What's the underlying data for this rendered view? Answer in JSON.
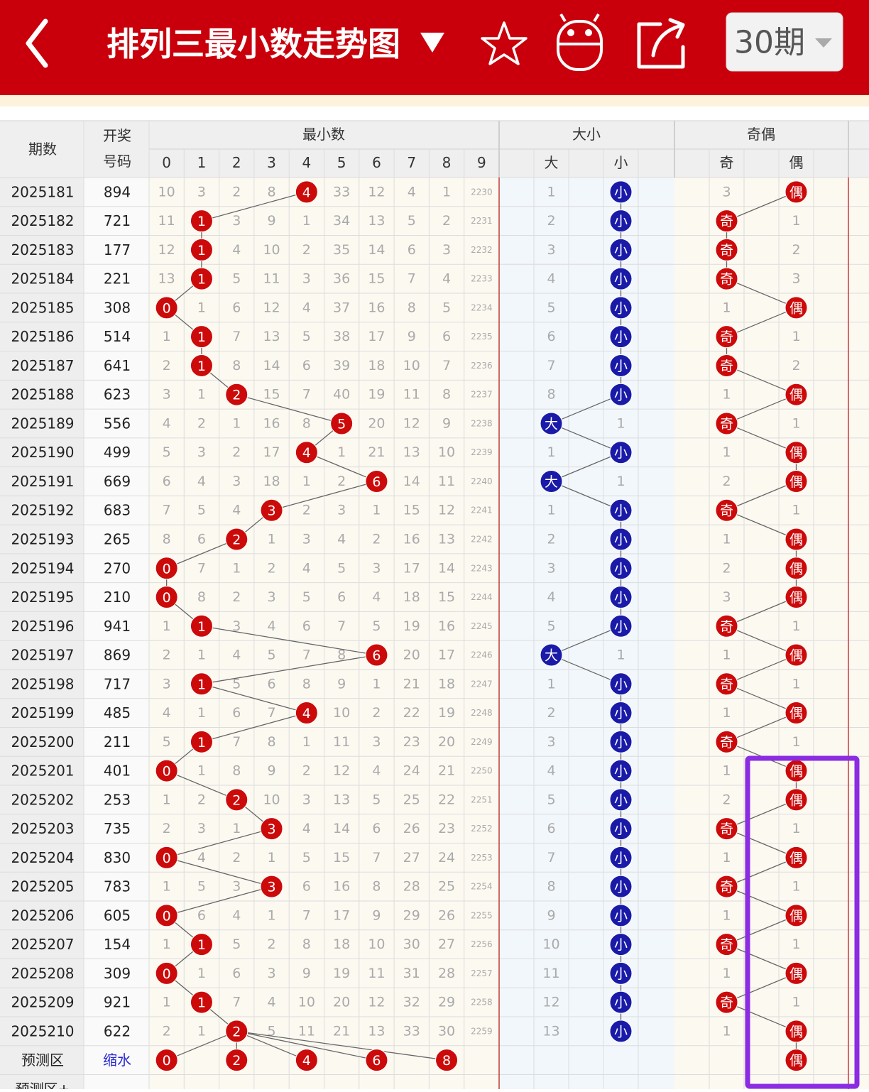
{
  "header": {
    "title": "排列三最小数走势图",
    "period_select": "30期"
  },
  "table": {
    "period_header": "期数",
    "number_header": [
      "开奖",
      "号码"
    ],
    "groups": [
      "最小数",
      "大小",
      "奇偶"
    ],
    "digits": [
      0,
      1,
      2,
      3,
      4,
      5,
      6,
      7,
      8,
      9
    ],
    "size_headers": [
      "大",
      "小"
    ],
    "parity_headers": [
      "奇",
      "偶"
    ],
    "rows": [
      {
        "period": "2025181",
        "number": "894",
        "min": [
          10,
          3,
          2,
          8,
          null,
          33,
          12,
          4,
          1,
          2230
        ],
        "hit": 4,
        "size": "小",
        "size_miss": 1,
        "parity": "偶",
        "parity_miss": 3
      },
      {
        "period": "2025182",
        "number": "721",
        "min": [
          11,
          null,
          3,
          9,
          1,
          34,
          13,
          5,
          2,
          2231
        ],
        "hit": 1,
        "size": "小",
        "size_miss": 2,
        "parity": "奇",
        "parity_miss": 1
      },
      {
        "period": "2025183",
        "number": "177",
        "min": [
          12,
          null,
          4,
          10,
          2,
          35,
          14,
          6,
          3,
          2232
        ],
        "hit": 1,
        "size": "小",
        "size_miss": 3,
        "parity": "奇",
        "parity_miss": 2
      },
      {
        "period": "2025184",
        "number": "221",
        "min": [
          13,
          null,
          5,
          11,
          3,
          36,
          15,
          7,
          4,
          2233
        ],
        "hit": 1,
        "size": "小",
        "size_miss": 4,
        "parity": "奇",
        "parity_miss": 3
      },
      {
        "period": "2025185",
        "number": "308",
        "min": [
          null,
          1,
          6,
          12,
          4,
          37,
          16,
          8,
          5,
          2234
        ],
        "hit": 0,
        "size": "小",
        "size_miss": 5,
        "parity": "偶",
        "parity_miss": 1
      },
      {
        "period": "2025186",
        "number": "514",
        "min": [
          1,
          null,
          7,
          13,
          5,
          38,
          17,
          9,
          6,
          2235
        ],
        "hit": 1,
        "size": "小",
        "size_miss": 6,
        "parity": "奇",
        "parity_miss": 1
      },
      {
        "period": "2025187",
        "number": "641",
        "min": [
          2,
          null,
          8,
          14,
          6,
          39,
          18,
          10,
          7,
          2236
        ],
        "hit": 1,
        "size": "小",
        "size_miss": 7,
        "parity": "奇",
        "parity_miss": 2
      },
      {
        "period": "2025188",
        "number": "623",
        "min": [
          3,
          1,
          null,
          15,
          7,
          40,
          19,
          11,
          8,
          2237
        ],
        "hit": 2,
        "size": "小",
        "size_miss": 8,
        "parity": "偶",
        "parity_miss": 1
      },
      {
        "period": "2025189",
        "number": "556",
        "min": [
          4,
          2,
          1,
          16,
          8,
          null,
          20,
          12,
          9,
          2238
        ],
        "hit": 5,
        "size": "大",
        "size_miss": 1,
        "parity": "奇",
        "parity_miss": 1
      },
      {
        "period": "2025190",
        "number": "499",
        "min": [
          5,
          3,
          2,
          17,
          null,
          1,
          21,
          13,
          10,
          2239
        ],
        "hit": 4,
        "size": "小",
        "size_miss": 1,
        "parity": "偶",
        "parity_miss": 1
      },
      {
        "period": "2025191",
        "number": "669",
        "min": [
          6,
          4,
          3,
          18,
          1,
          2,
          null,
          14,
          11,
          2240
        ],
        "hit": 6,
        "size": "大",
        "size_miss": 1,
        "parity": "偶",
        "parity_miss": 2
      },
      {
        "period": "2025192",
        "number": "683",
        "min": [
          7,
          5,
          4,
          null,
          2,
          3,
          1,
          15,
          12,
          2241
        ],
        "hit": 3,
        "size": "小",
        "size_miss": 1,
        "parity": "奇",
        "parity_miss": 1
      },
      {
        "period": "2025193",
        "number": "265",
        "min": [
          8,
          6,
          null,
          1,
          3,
          4,
          2,
          16,
          13,
          2242
        ],
        "hit": 2,
        "size": "小",
        "size_miss": 2,
        "parity": "偶",
        "parity_miss": 1
      },
      {
        "period": "2025194",
        "number": "270",
        "min": [
          null,
          7,
          1,
          2,
          4,
          5,
          3,
          17,
          14,
          2243
        ],
        "hit": 0,
        "size": "小",
        "size_miss": 3,
        "parity": "偶",
        "parity_miss": 2
      },
      {
        "period": "2025195",
        "number": "210",
        "min": [
          null,
          8,
          2,
          3,
          5,
          6,
          4,
          18,
          15,
          2244
        ],
        "hit": 0,
        "size": "小",
        "size_miss": 4,
        "parity": "偶",
        "parity_miss": 3
      },
      {
        "period": "2025196",
        "number": "941",
        "min": [
          1,
          null,
          3,
          4,
          6,
          7,
          5,
          19,
          16,
          2245
        ],
        "hit": 1,
        "size": "小",
        "size_miss": 5,
        "parity": "奇",
        "parity_miss": 1
      },
      {
        "period": "2025197",
        "number": "869",
        "min": [
          2,
          1,
          4,
          5,
          7,
          8,
          null,
          20,
          17,
          2246
        ],
        "hit": 6,
        "size": "大",
        "size_miss": 1,
        "parity": "偶",
        "parity_miss": 1
      },
      {
        "period": "2025198",
        "number": "717",
        "min": [
          3,
          null,
          5,
          6,
          8,
          9,
          1,
          21,
          18,
          2247
        ],
        "hit": 1,
        "size": "小",
        "size_miss": 1,
        "parity": "奇",
        "parity_miss": 1
      },
      {
        "period": "2025199",
        "number": "485",
        "min": [
          4,
          1,
          6,
          7,
          null,
          10,
          2,
          22,
          19,
          2248
        ],
        "hit": 4,
        "size": "小",
        "size_miss": 2,
        "parity": "偶",
        "parity_miss": 1
      },
      {
        "period": "2025200",
        "number": "211",
        "min": [
          5,
          null,
          7,
          8,
          1,
          11,
          3,
          23,
          20,
          2249
        ],
        "hit": 1,
        "size": "小",
        "size_miss": 3,
        "parity": "奇",
        "parity_miss": 1
      },
      {
        "period": "2025201",
        "number": "401",
        "min": [
          null,
          1,
          8,
          9,
          2,
          12,
          4,
          24,
          21,
          2250
        ],
        "hit": 0,
        "size": "小",
        "size_miss": 4,
        "parity": "偶",
        "parity_miss": 1
      },
      {
        "period": "2025202",
        "number": "253",
        "min": [
          1,
          2,
          null,
          10,
          3,
          13,
          5,
          25,
          22,
          2251
        ],
        "hit": 2,
        "size": "小",
        "size_miss": 5,
        "parity": "偶",
        "parity_miss": 2
      },
      {
        "period": "2025203",
        "number": "735",
        "min": [
          2,
          3,
          1,
          null,
          4,
          14,
          6,
          26,
          23,
          2252
        ],
        "hit": 3,
        "size": "小",
        "size_miss": 6,
        "parity": "奇",
        "parity_miss": 1
      },
      {
        "period": "2025204",
        "number": "830",
        "min": [
          null,
          4,
          2,
          1,
          5,
          15,
          7,
          27,
          24,
          2253
        ],
        "hit": 0,
        "size": "小",
        "size_miss": 7,
        "parity": "偶",
        "parity_miss": 1
      },
      {
        "period": "2025205",
        "number": "783",
        "min": [
          1,
          5,
          3,
          null,
          6,
          16,
          8,
          28,
          25,
          2254
        ],
        "hit": 3,
        "size": "小",
        "size_miss": 8,
        "parity": "奇",
        "parity_miss": 1
      },
      {
        "period": "2025206",
        "number": "605",
        "min": [
          null,
          6,
          4,
          1,
          7,
          17,
          9,
          29,
          26,
          2255
        ],
        "hit": 0,
        "size": "小",
        "size_miss": 9,
        "parity": "偶",
        "parity_miss": 1
      },
      {
        "period": "2025207",
        "number": "154",
        "min": [
          1,
          null,
          5,
          2,
          8,
          18,
          10,
          30,
          27,
          2256
        ],
        "hit": 1,
        "size": "小",
        "size_miss": 10,
        "parity": "奇",
        "parity_miss": 1
      },
      {
        "period": "2025208",
        "number": "309",
        "min": [
          null,
          1,
          6,
          3,
          9,
          19,
          11,
          31,
          28,
          2257
        ],
        "hit": 0,
        "size": "小",
        "size_miss": 11,
        "parity": "偶",
        "parity_miss": 1
      },
      {
        "period": "2025209",
        "number": "921",
        "min": [
          1,
          null,
          7,
          4,
          10,
          20,
          12,
          32,
          29,
          2258
        ],
        "hit": 1,
        "size": "小",
        "size_miss": 12,
        "parity": "奇",
        "parity_miss": 1
      },
      {
        "period": "2025210",
        "number": "622",
        "min": [
          2,
          1,
          null,
          5,
          11,
          21,
          13,
          33,
          30,
          2259
        ],
        "hit": 2,
        "size": "小",
        "size_miss": 13,
        "parity": "偶",
        "parity_miss": 1
      }
    ],
    "prediction": {
      "label": "预测区",
      "tag": "缩水",
      "picks": [
        0,
        2,
        4,
        6,
        8
      ],
      "parity": "偶"
    },
    "next_label": "预测区+"
  }
}
